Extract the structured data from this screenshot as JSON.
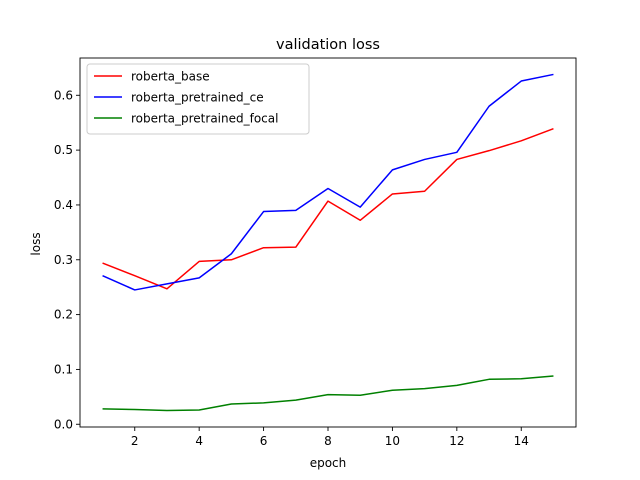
{
  "chart_data": {
    "type": "line",
    "title": "validation loss",
    "xlabel": "epoch",
    "ylabel": "loss",
    "xlim": [
      0.3,
      15.7
    ],
    "ylim": [
      -0.005,
      0.668
    ],
    "xticks": [
      2,
      4,
      6,
      8,
      10,
      12,
      14
    ],
    "yticks": [
      0.0,
      0.1,
      0.2,
      0.3,
      0.4,
      0.5,
      0.6
    ],
    "xtick_labels": [
      "2",
      "4",
      "6",
      "8",
      "10",
      "12",
      "14"
    ],
    "ytick_labels": [
      "0.0",
      "0.1",
      "0.2",
      "0.3",
      "0.4",
      "0.5",
      "0.6"
    ],
    "grid": false,
    "legend_position": "top-left",
    "x": [
      1,
      2,
      3,
      4,
      5,
      6,
      7,
      8,
      9,
      10,
      11,
      12,
      13,
      14,
      15
    ],
    "series": [
      {
        "name": "roberta_base",
        "color": "#ff0000",
        "values": [
          0.294,
          0.271,
          0.247,
          0.297,
          0.3,
          0.322,
          0.323,
          0.407,
          0.372,
          0.42,
          0.425,
          0.483,
          0.499,
          0.517,
          0.539
        ]
      },
      {
        "name": "roberta_pretrained_ce",
        "color": "#0000ff",
        "values": [
          0.271,
          0.245,
          0.256,
          0.267,
          0.311,
          0.388,
          0.39,
          0.43,
          0.396,
          0.464,
          0.483,
          0.496,
          0.58,
          0.626,
          0.638
        ]
      },
      {
        "name": "roberta_pretrained_focal",
        "color": "#008000",
        "values": [
          0.028,
          0.027,
          0.025,
          0.026,
          0.037,
          0.039,
          0.044,
          0.054,
          0.053,
          0.062,
          0.065,
          0.071,
          0.082,
          0.083,
          0.088
        ]
      }
    ]
  }
}
